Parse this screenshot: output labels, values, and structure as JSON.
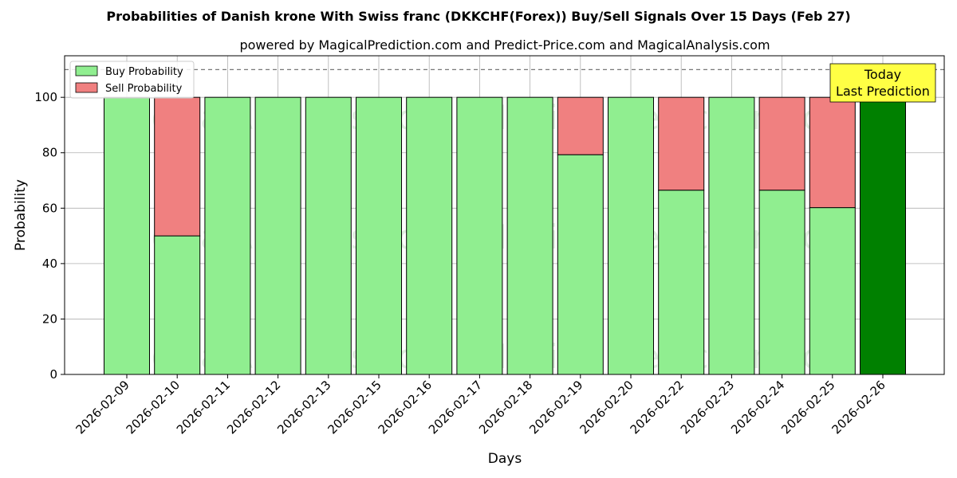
{
  "chart_data": {
    "type": "bar",
    "stacked": true,
    "title": "Probabilities of Danish krone With Swiss franc (DKKCHF(Forex)) Buy/Sell Signals Over 15 Days (Feb 27)",
    "subtitle": "powered by MagicalPrediction.com and Predict-Price.com and MagicalAnalysis.com",
    "xlabel": "Days",
    "ylabel": "Probability",
    "ylim": [
      0,
      115
    ],
    "yticks": [
      0,
      20,
      40,
      60,
      80,
      100
    ],
    "grid": true,
    "legend_placement": "top-left",
    "reference_line": 110,
    "categories": [
      "2026-02-09",
      "2026-02-10",
      "2026-02-11",
      "2026-02-12",
      "2026-02-13",
      "2026-02-15",
      "2026-02-16",
      "2026-02-17",
      "2026-02-18",
      "2026-02-19",
      "2026-02-20",
      "2026-02-22",
      "2026-02-23",
      "2026-02-24",
      "2026-02-25",
      "2026-02-26"
    ],
    "series": [
      {
        "name": "Buy Probability",
        "color": "#90ee90",
        "values": [
          100,
          50,
          100,
          100,
          100,
          100,
          100,
          100,
          100,
          79.3,
          100,
          66.5,
          100,
          66.5,
          60.2,
          100
        ]
      },
      {
        "name": "Sell Probability",
        "color": "#f08080",
        "values": [
          0,
          50,
          0,
          0,
          0,
          0,
          0,
          0,
          0,
          20.7,
          0,
          33.5,
          0,
          33.5,
          39.8,
          0
        ]
      }
    ],
    "highlight": {
      "index": 15,
      "color": "#008000"
    },
    "annotation": {
      "line1": "Today",
      "line2": "Last Prediction",
      "color": "#ffff44"
    },
    "watermarks": [
      "MagicalAnalysis.com",
      "MagicalPrediction.com"
    ]
  }
}
